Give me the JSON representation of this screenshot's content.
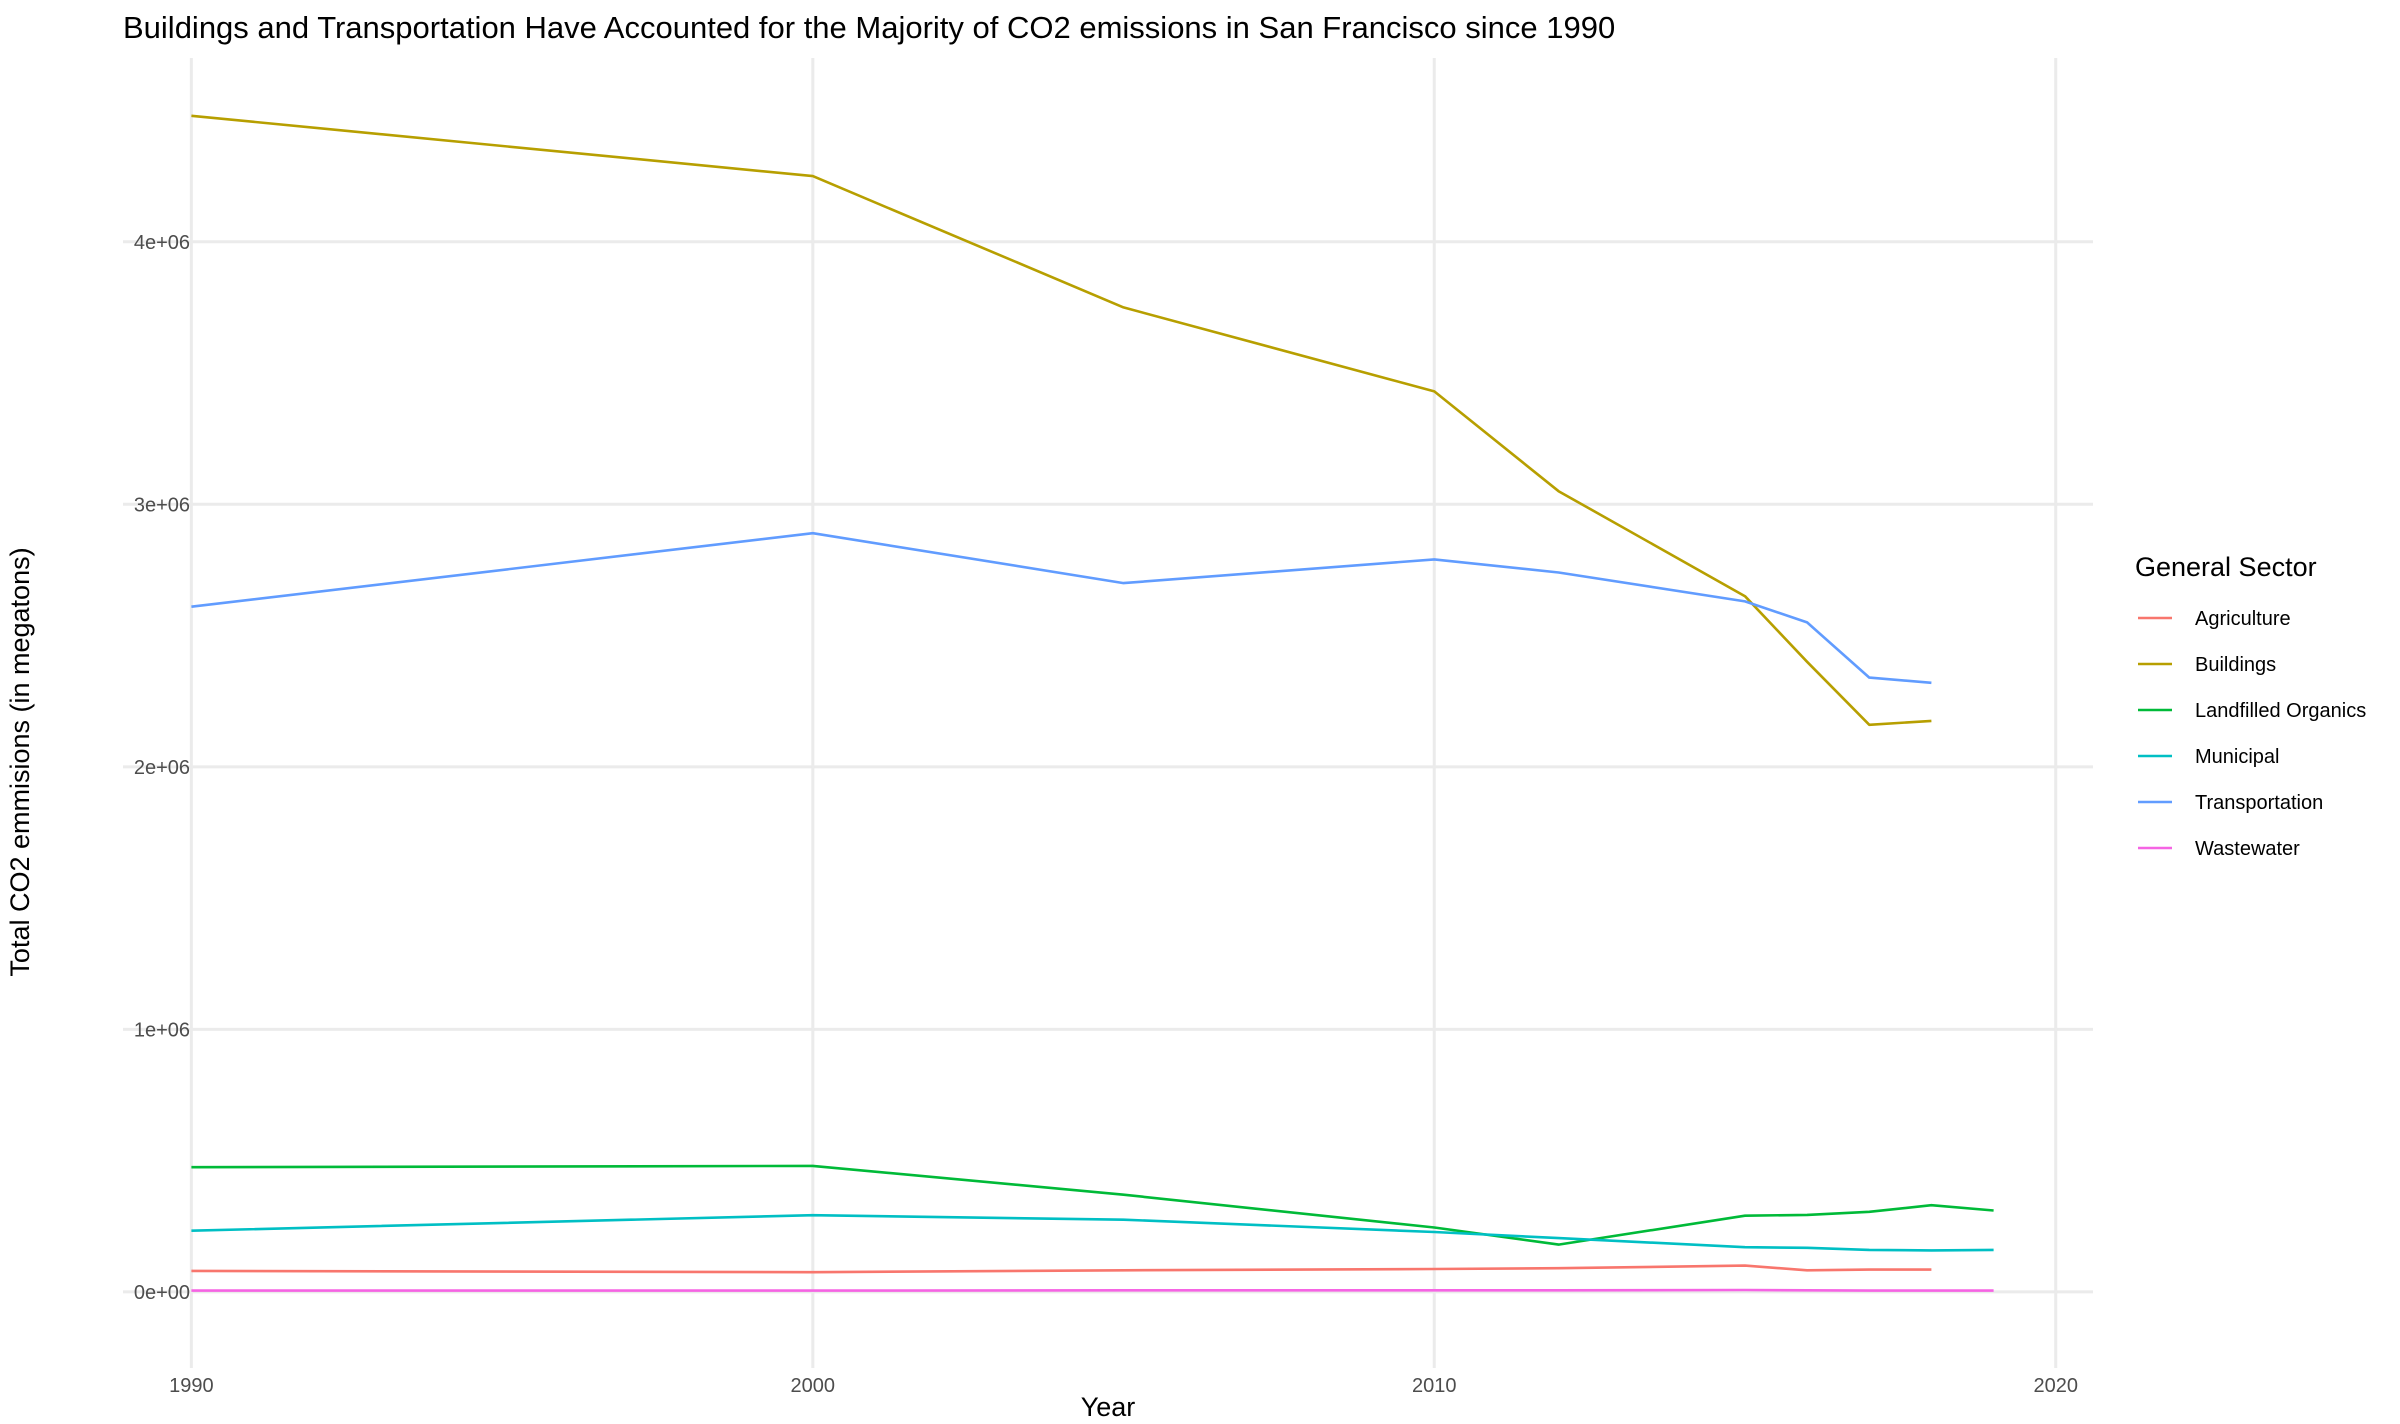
{
  "chart_data": {
    "type": "line",
    "title": "Buildings and Transportation Have Accounted for the Majority of CO2 emissions in San Francisco since 1990",
    "xlabel": "Year",
    "ylabel": "Total CO2 emmisions (in megatons)",
    "xlim": [
      1988.9,
      2020.6
    ],
    "ylim": [
      -290000,
      4700000
    ],
    "x_ticks": [
      1990,
      2000,
      2010,
      2020
    ],
    "x_tick_labels": [
      "1990",
      "2000",
      "2010",
      "2020"
    ],
    "y_ticks": [
      0,
      1000000,
      2000000,
      3000000,
      4000000
    ],
    "y_tick_labels": [
      "0e+00",
      "1e+06",
      "2e+06",
      "3e+06",
      "4e+06"
    ],
    "grid": true,
    "legend": {
      "title": "General Sector",
      "position": "right"
    },
    "series": [
      {
        "name": "Agriculture",
        "color": "#F8766D",
        "x": [
          1990,
          2000,
          2005,
          2010,
          2012,
          2015,
          2016,
          2017,
          2018
        ],
        "values": [
          80000,
          75000,
          82000,
          87000,
          90000,
          100000,
          82000,
          85000,
          85000
        ]
      },
      {
        "name": "Buildings",
        "color": "#B79F00",
        "x": [
          1990,
          2000,
          2005,
          2010,
          2012,
          2015,
          2016,
          2017,
          2018
        ],
        "values": [
          4480000,
          4250000,
          3750000,
          3430000,
          3050000,
          2650000,
          2400000,
          2160000,
          2175000
        ]
      },
      {
        "name": "Landfilled Organics",
        "color": "#00BA38",
        "x": [
          1990,
          2000,
          2005,
          2010,
          2012,
          2015,
          2016,
          2017,
          2018,
          2019
        ],
        "values": [
          475000,
          480000,
          370000,
          245000,
          180000,
          290000,
          293000,
          305000,
          330000,
          310000
        ]
      },
      {
        "name": "Municipal",
        "color": "#00BFC4",
        "x": [
          1990,
          2000,
          2005,
          2010,
          2012,
          2015,
          2016,
          2017,
          2018,
          2019
        ],
        "values": [
          233000,
          292000,
          275000,
          228000,
          205000,
          170000,
          168000,
          160000,
          158000,
          160000
        ]
      },
      {
        "name": "Transportation",
        "color": "#619CFF",
        "x": [
          1990,
          2000,
          2005,
          2010,
          2012,
          2015,
          2016,
          2017,
          2018
        ],
        "values": [
          2610000,
          2890000,
          2700000,
          2790000,
          2740000,
          2630000,
          2550000,
          2340000,
          2320000
        ]
      },
      {
        "name": "Wastewater",
        "color": "#F564E3",
        "x": [
          1990,
          2000,
          2005,
          2010,
          2012,
          2015,
          2016,
          2017,
          2018,
          2019
        ],
        "values": [
          5000,
          5000,
          6000,
          6000,
          6000,
          7000,
          6000,
          5000,
          5000,
          5000
        ]
      }
    ]
  }
}
